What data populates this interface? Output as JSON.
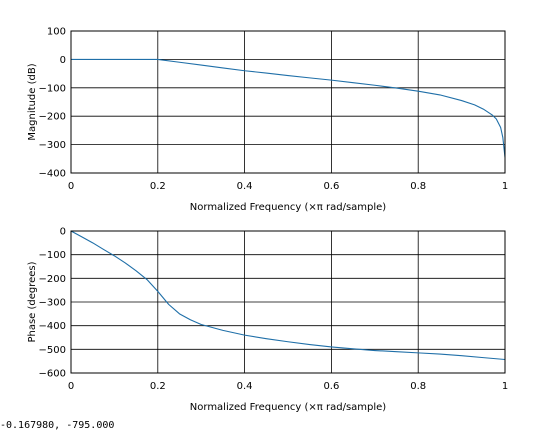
{
  "coord_readout": "-0.167980, -795.000",
  "colors": {
    "series": "#1f6fa8",
    "grid": "#000000",
    "axes": "#000000",
    "background": "#ffffff"
  },
  "chart_data": [
    {
      "type": "line",
      "title": "",
      "xlabel": "Normalized Frequency  (×π rad/sample)",
      "ylabel": "Magnitude (dB)",
      "xlim": [
        0,
        1
      ],
      "ylim": [
        -400,
        100
      ],
      "xticks": [
        0,
        0.2,
        0.4,
        0.6,
        0.8,
        1
      ],
      "xtick_labels": [
        "0",
        "0.2",
        "0.4",
        "0.6",
        "0.8",
        "1"
      ],
      "yticks": [
        100,
        0,
        -100,
        -200,
        -300,
        -400
      ],
      "ytick_labels": [
        "100",
        "0",
        "−100",
        "−200",
        "−300",
        "−400"
      ],
      "grid": true,
      "series": [
        {
          "x": [
            0,
            0.05,
            0.1,
            0.15,
            0.2,
            0.25,
            0.3,
            0.35,
            0.4,
            0.45,
            0.5,
            0.55,
            0.6,
            0.65,
            0.7,
            0.75,
            0.8,
            0.85,
            0.9,
            0.93,
            0.95,
            0.97,
            0.98,
            0.99,
            0.995,
            1.0
          ],
          "y": [
            0,
            0,
            0,
            0,
            0,
            -10,
            -20,
            -30,
            -40,
            -48,
            -57,
            -65,
            -73,
            -82,
            -91,
            -101,
            -112,
            -125,
            -145,
            -160,
            -175,
            -195,
            -210,
            -240,
            -275,
            -345
          ]
        }
      ]
    },
    {
      "type": "line",
      "title": "",
      "xlabel": "Normalized Frequency  (×π rad/sample)",
      "ylabel": "Phase (degrees)",
      "xlim": [
        0,
        1
      ],
      "ylim": [
        -600,
        0
      ],
      "xticks": [
        0,
        0.2,
        0.4,
        0.6,
        0.8,
        1
      ],
      "xtick_labels": [
        "0",
        "0.2",
        "0.4",
        "0.6",
        "0.8",
        "1"
      ],
      "yticks": [
        0,
        -100,
        -200,
        -300,
        -400,
        -500,
        -600
      ],
      "ytick_labels": [
        "0",
        "−100",
        "−200",
        "−300",
        "−400",
        "−500",
        "−600"
      ],
      "grid": true,
      "series": [
        {
          "x": [
            0,
            0.025,
            0.05,
            0.075,
            0.1,
            0.125,
            0.15,
            0.175,
            0.2,
            0.225,
            0.25,
            0.275,
            0.3,
            0.35,
            0.4,
            0.45,
            0.5,
            0.55,
            0.6,
            0.65,
            0.7,
            0.75,
            0.8,
            0.85,
            0.9,
            0.95,
            1.0
          ],
          "y": [
            0,
            -25,
            -50,
            -78,
            -105,
            -135,
            -168,
            -205,
            -255,
            -310,
            -350,
            -375,
            -395,
            -420,
            -440,
            -455,
            -468,
            -480,
            -490,
            -498,
            -505,
            -510,
            -515,
            -520,
            -527,
            -535,
            -543
          ]
        }
      ]
    }
  ]
}
